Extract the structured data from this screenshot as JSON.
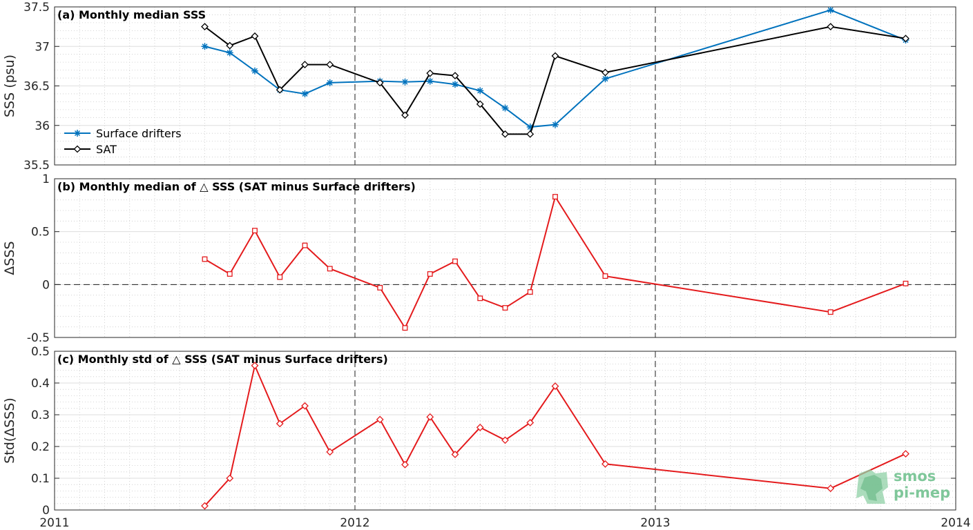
{
  "chart_data": [
    {
      "panel": "a",
      "type": "line",
      "title": "(a) Monthly median SSS",
      "ylabel": "SSS (psu)",
      "ylim": [
        35.5,
        37.5
      ],
      "yticks": [
        35.5,
        36,
        36.5,
        37,
        37.5
      ],
      "ytick_labels": [
        "35.5",
        "36",
        "36.5",
        "37",
        "37.5"
      ],
      "grid": true,
      "legend": "bottom-left",
      "x": [
        "2011-07",
        "2011-08",
        "2011-09",
        "2011-10",
        "2011-11",
        "2011-12",
        "2012-02",
        "2012-03",
        "2012-04",
        "2012-05",
        "2012-06",
        "2012-07",
        "2012-08",
        "2012-09",
        "2012-11",
        "2013-08",
        "2013-11"
      ],
      "series": [
        {
          "name": "Surface drifters",
          "color": "#0072bd",
          "marker": "star",
          "values": [
            37.0,
            36.92,
            36.69,
            36.45,
            36.4,
            36.54,
            36.56,
            36.55,
            36.56,
            36.52,
            36.44,
            36.22,
            35.98,
            36.01,
            36.59,
            37.46,
            37.08
          ]
        },
        {
          "name": "SAT",
          "color": "#000000",
          "marker": "diamond",
          "values": [
            37.25,
            37.01,
            37.13,
            36.45,
            36.77,
            36.77,
            36.54,
            36.13,
            36.66,
            36.63,
            36.27,
            35.89,
            35.89,
            36.88,
            36.67,
            37.25,
            37.1
          ]
        }
      ]
    },
    {
      "panel": "b",
      "type": "line",
      "title": "(b) Monthly median of △ SSS (SAT minus Surface drifters)",
      "ylabel": "ΔSSS",
      "ylim": [
        -0.5,
        1
      ],
      "yticks": [
        -0.5,
        0,
        0.5,
        1
      ],
      "ytick_labels": [
        "-0.5",
        "0",
        "0.5",
        "1"
      ],
      "grid": true,
      "zero_line": true,
      "x": [
        "2011-07",
        "2011-08",
        "2011-09",
        "2011-10",
        "2011-11",
        "2011-12",
        "2012-02",
        "2012-03",
        "2012-04",
        "2012-05",
        "2012-06",
        "2012-07",
        "2012-08",
        "2012-09",
        "2012-11",
        "2013-08",
        "2013-11"
      ],
      "series": [
        {
          "color": "#e41a1c",
          "marker": "square",
          "values": [
            0.24,
            0.1,
            0.51,
            0.07,
            0.37,
            0.15,
            -0.03,
            -0.41,
            0.1,
            0.22,
            -0.13,
            -0.22,
            -0.07,
            0.83,
            0.08,
            -0.26,
            0.01
          ]
        }
      ]
    },
    {
      "panel": "c",
      "type": "line",
      "title": "(c) Monthly std of △ SSS (SAT minus Surface drifters)",
      "ylabel": "Std(ΔSSS)",
      "ylim": [
        0,
        0.5
      ],
      "yticks": [
        0,
        0.1,
        0.2,
        0.3,
        0.4,
        0.5
      ],
      "ytick_labels": [
        "0",
        "0.1",
        "0.2",
        "0.3",
        "0.4",
        "0.5"
      ],
      "grid": true,
      "x": [
        "2011-07",
        "2011-08",
        "2011-09",
        "2011-10",
        "2011-11",
        "2011-12",
        "2012-02",
        "2012-03",
        "2012-04",
        "2012-05",
        "2012-06",
        "2012-07",
        "2012-08",
        "2012-09",
        "2012-11",
        "2013-08",
        "2013-11"
      ],
      "series": [
        {
          "color": "#e41a1c",
          "marker": "diamond",
          "values": [
            0.013,
            0.1,
            0.455,
            0.272,
            0.328,
            0.183,
            0.285,
            0.143,
            0.293,
            0.175,
            0.26,
            0.22,
            0.275,
            0.39,
            0.145,
            0.068,
            0.177
          ]
        }
      ]
    }
  ],
  "xaxis": {
    "range": [
      "2011-01",
      "2014-01"
    ],
    "ticks": [
      "2011-01",
      "2012-01",
      "2013-01",
      "2014-01"
    ],
    "tick_labels": [
      "2011",
      "2012",
      "2013",
      "2014"
    ],
    "year_lines": [
      "2012-01",
      "2013-01"
    ]
  },
  "logo": {
    "line1": "smos",
    "line2": "pi-mep"
  },
  "colors": {
    "drifters": "#0072bd",
    "sat": "#000000",
    "delta": "#e41a1c",
    "logo": "#7fc79a"
  }
}
